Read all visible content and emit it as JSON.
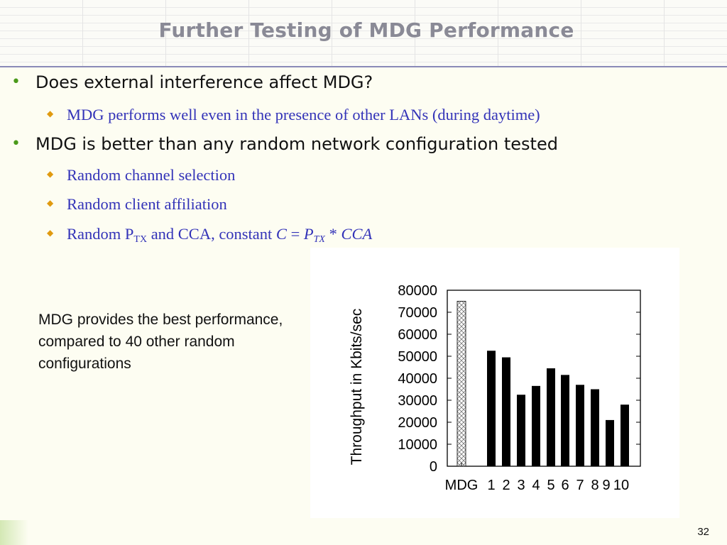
{
  "slide": {
    "title": "Further Testing of MDG Performance",
    "page_number": "32",
    "note": "MDG provides the best performance, compared to 40 other random configurations"
  },
  "bullets": [
    {
      "text": "Does external interference affect MDG?",
      "sub": [
        "MDG performs well even in the presence of other LANs (during daytime)"
      ]
    },
    {
      "text": "MDG is better than any random network configuration tested",
      "sub": [
        "Random channel selection",
        "Random client affiliation",
        {
          "part1": "Random P",
          "sub1": "TX",
          "part2": " and CCA, constant ",
          "var_c": "C",
          "eq": " = ",
          "var_p": "P",
          "sub2": "TX",
          "star": " * ",
          "var_cca": "CCA"
        }
      ]
    }
  ],
  "colors": {
    "title": "#8a8a96",
    "bullet_dot": "#4a9a1a",
    "sub_text": "#3333b8",
    "diamond": "#e09a10",
    "bar": "#000000"
  },
  "icons": {
    "bullet_l1": "green-dot-icon",
    "bullet_l2": "orange-diamond-icon"
  },
  "chart_data": {
    "type": "bar",
    "ylabel": "Throughput in Kbits/sec",
    "xlabel": "",
    "ylim": [
      0,
      80000
    ],
    "yticks": [
      0,
      10000,
      20000,
      30000,
      40000,
      50000,
      60000,
      70000,
      80000
    ],
    "categories": [
      "MDG",
      "1",
      "2",
      "3",
      "4",
      "5",
      "6",
      "7",
      "8",
      "9",
      "10"
    ],
    "values": [
      75000,
      52500,
      49500,
      32500,
      36500,
      44500,
      41500,
      37000,
      35000,
      21000,
      28000
    ],
    "patterns": [
      "crosshatch",
      "solid",
      "solid",
      "solid",
      "solid",
      "solid",
      "solid",
      "solid",
      "solid",
      "solid",
      "solid"
    ]
  }
}
